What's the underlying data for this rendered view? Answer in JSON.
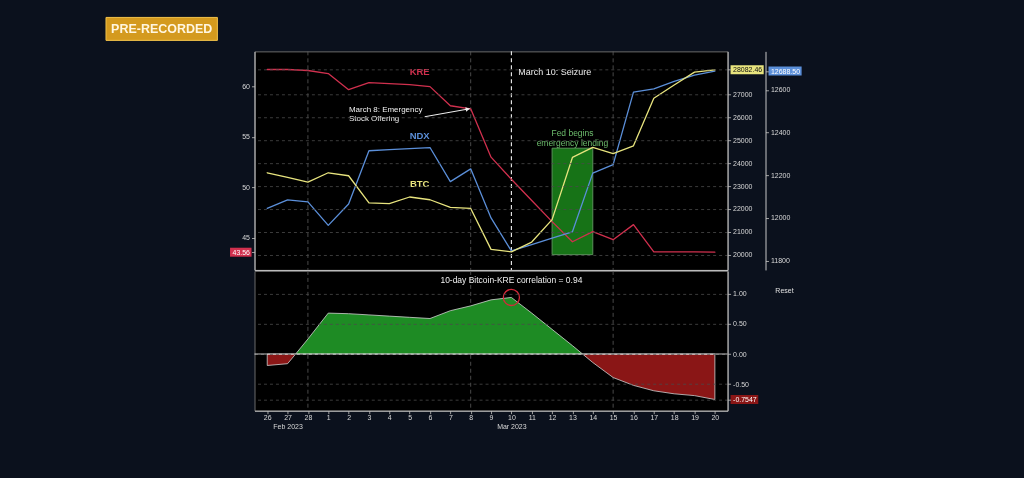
{
  "chart_data": [
    {
      "type": "line",
      "x": [
        "2023-02-26",
        "2023-02-27",
        "2023-02-28",
        "2023-03-01",
        "2023-03-02",
        "2023-03-03",
        "2023-03-04",
        "2023-03-05",
        "2023-03-06",
        "2023-03-07",
        "2023-03-08",
        "2023-03-09",
        "2023-03-10",
        "2023-03-11",
        "2023-03-12",
        "2023-03-13",
        "2023-03-14",
        "2023-03-15",
        "2023-03-16",
        "2023-03-17",
        "2023-03-18",
        "2023-03-19",
        "2023-03-20"
      ],
      "series": [
        {
          "name": "KRE",
          "color": "#d1304e",
          "axis": "y2",
          "values": [
            61.7,
            61.7,
            61.6,
            61.3,
            59.7,
            60.4,
            60.3,
            60.2,
            60.0,
            58.1,
            57.8,
            53.0,
            50.8,
            48.7,
            46.6,
            44.6,
            45.6,
            44.8,
            46.3,
            43.6,
            43.6,
            43.6,
            43.56
          ]
        },
        {
          "name": "NDX",
          "color": "#5b8fd9",
          "axis": "y3",
          "values": [
            12045,
            12085,
            12075,
            11965,
            12065,
            12315,
            12320,
            12325,
            12330,
            12170,
            12230,
            12000,
            11845,
            11875,
            11905,
            11935,
            12210,
            12250,
            12590,
            12605,
            12640,
            12670,
            12688.5
          ]
        },
        {
          "name": "BTC",
          "color": "#e8e47e",
          "values": [
            23580,
            23380,
            23170,
            23580,
            23450,
            22260,
            22230,
            22520,
            22400,
            22070,
            22020,
            20230,
            20120,
            20550,
            21530,
            24250,
            24690,
            24420,
            24760,
            26840,
            27420,
            27980,
            28082.46
          ]
        }
      ],
      "xlim": [
        "2023-02-25T09:00",
        "2023-03-20T15:00"
      ],
      "ylim": [
        19330,
        28890
      ],
      "yticks": [
        20000,
        21000,
        22000,
        23000,
        24000,
        25000,
        26000,
        27000,
        28082.46
      ],
      "y2lim": [
        41.8,
        63.5
      ],
      "y2ticks": [
        43.56,
        45,
        50,
        55,
        60
      ],
      "y3lim": [
        11756,
        12781
      ],
      "y3ticks": [
        11800,
        12000,
        12200,
        12400,
        12600,
        {
          "value": 12688.5,
          "label": "12688.50"
        }
      ],
      "tick_labels": "y",
      "grid": "y",
      "legend": false,
      "line_style": "solid",
      "ref_lines": [
        {
          "axis": "x",
          "value": "2023-02-28",
          "color": "#5c5c5c",
          "line_style": "dashed"
        },
        {
          "axis": "x",
          "value": "2023-03-08",
          "color": "#5c5c5c",
          "line_style": "dashed"
        },
        {
          "axis": "x",
          "value": "2023-03-15",
          "color": "#5c5c5c",
          "line_style": "dashed"
        },
        {
          "axis": "x",
          "value": "2023-03-10",
          "label": "March 10: Seizure",
          "color": "#f2f2f2",
          "line_style": "dashed"
        }
      ],
      "bands": [
        {
          "axis": "x",
          "from": "2023-03-12",
          "to": "2023-03-14",
          "label": "Fed begins emergency lending",
          "color": "#1f9a1f"
        }
      ],
      "annotations": [
        {
          "text": "March 8: Emergency Stock Offering",
          "x": "2023-03-08",
          "y": 26380
        },
        "PRE-RECORDED"
      ]
    },
    {
      "type": "area",
      "series": [
        {
          "color": "#8a1616",
          "x": [
            "2023-02-26",
            "2023-02-27",
            "2023-02-27T09:30"
          ],
          "values": [
            -0.19,
            -0.16,
            0
          ]
        },
        {
          "color": "#1e8b24",
          "x": [
            "2023-02-27T09:30",
            "2023-02-28",
            "2023-03-01",
            "2023-03-02",
            "2023-03-03",
            "2023-03-04",
            "2023-03-05",
            "2023-03-06",
            "2023-03-07",
            "2023-03-08",
            "2023-03-09",
            "2023-03-10",
            "2023-03-11",
            "2023-03-12",
            "2023-03-13",
            "2023-03-13T12:00"
          ],
          "values": [
            0,
            0.25,
            0.68,
            0.67,
            0.65,
            0.63,
            0.61,
            0.59,
            0.72,
            0.8,
            0.9,
            0.94,
            0.68,
            0.41,
            0.14,
            0
          ]
        },
        {
          "color": "#8a1616",
          "x": [
            "2023-03-13T12:00",
            "2023-03-14",
            "2023-03-15",
            "2023-03-16",
            "2023-03-17",
            "2023-03-18",
            "2023-03-19",
            "2023-03-20"
          ],
          "values": [
            0,
            -0.14,
            -0.39,
            -0.52,
            -0.61,
            -0.66,
            -0.69,
            -0.7547
          ]
        }
      ],
      "xlim": [
        "2023-02-25T09:00",
        "2023-03-20T15:00"
      ],
      "xticks": [
        {
          "value": "2023-02-26",
          "label": "26"
        },
        {
          "value": "2023-02-27",
          "label": "27\nFeb 2023"
        },
        {
          "value": "2023-02-28",
          "label": "28"
        },
        {
          "value": "2023-03-01",
          "label": "1"
        },
        {
          "value": "2023-03-02",
          "label": "2"
        },
        {
          "value": "2023-03-03",
          "label": "3"
        },
        {
          "value": "2023-03-04",
          "label": "4"
        },
        {
          "value": "2023-03-05",
          "label": "5"
        },
        {
          "value": "2023-03-06",
          "label": "6"
        },
        {
          "value": "2023-03-07",
          "label": "7"
        },
        {
          "value": "2023-03-08",
          "label": "8"
        },
        {
          "value": "2023-03-09",
          "label": "9"
        },
        {
          "value": "2023-03-10",
          "label": "10\nMar 2023"
        },
        {
          "value": "2023-03-11",
          "label": "11"
        },
        {
          "value": "2023-03-12",
          "label": "12"
        },
        {
          "value": "2023-03-13",
          "label": "13"
        },
        {
          "value": "2023-03-14",
          "label": "14"
        },
        {
          "value": "2023-03-15",
          "label": "15"
        },
        {
          "value": "2023-03-16",
          "label": "16"
        },
        {
          "value": "2023-03-17",
          "label": "17"
        },
        {
          "value": "2023-03-18",
          "label": "18"
        },
        {
          "value": "2023-03-19",
          "label": "19"
        },
        {
          "value": "2023-03-20",
          "label": "20"
        }
      ],
      "ylim": [
        -0.94,
        1.38
      ],
      "yticks": [
        -0.7547,
        {
          "value": -0.5,
          "label": "-0.50"
        },
        {
          "value": 0,
          "label": "0.00"
        },
        {
          "value": 0.5,
          "label": "0.50"
        },
        {
          "value": 1,
          "label": "1.00"
        }
      ],
      "grid": "y",
      "legend": false,
      "ref_lines": [
        {
          "axis": "x",
          "value": "2023-02-28",
          "color": "#5c5c5c",
          "line_style": "dashed"
        },
        {
          "axis": "x",
          "value": "2023-03-08",
          "color": "#5c5c5c",
          "line_style": "dashed"
        },
        {
          "axis": "x",
          "value": "2023-03-15",
          "color": "#5c5c5c",
          "line_style": "dashed"
        },
        {
          "axis": "y",
          "value": 0,
          "color": "#e6e6e6"
        }
      ],
      "annotations": [
        {
          "text": "10-day Bitcoin-KRE correlation = 0.94",
          "x": "2023-03-10",
          "y": 0.94
        },
        "Reset"
      ]
    }
  ]
}
